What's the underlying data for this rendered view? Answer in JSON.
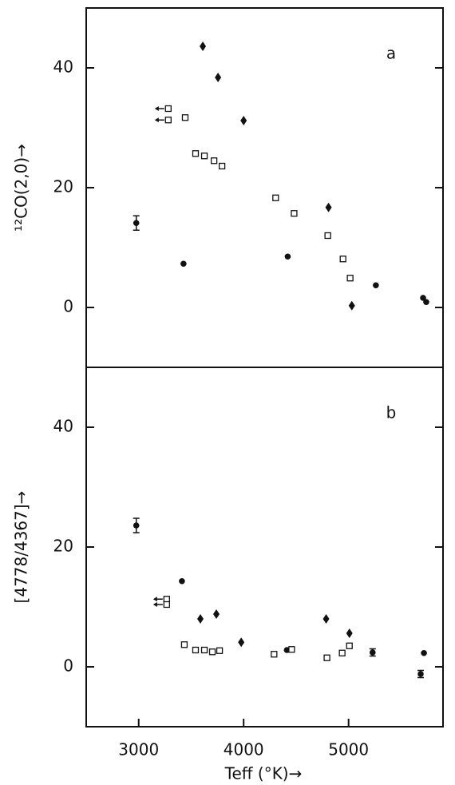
{
  "chart_data": [
    {
      "type": "scatter",
      "panel_label": "a",
      "ylabel": "¹²CO(2,0)→",
      "xlim": [
        2500,
        5900
      ],
      "ylim": [
        -10,
        50
      ],
      "yticks": [
        0,
        20,
        40
      ],
      "series": [
        {
          "marker": "diamond",
          "color": "#111111",
          "x": [
            3611,
            3756,
            4000,
            4809,
            5031
          ],
          "values": [
            43.6,
            38.4,
            31.2,
            16.7,
            0.3
          ]
        },
        {
          "marker": "circle",
          "color": "#111111",
          "x": [
            2977,
            3427,
            4420,
            5260,
            5710,
            5740
          ],
          "values": [
            14.1,
            7.3,
            8.5,
            3.7,
            1.6,
            0.9
          ],
          "errors": [
            1.2,
            null,
            null,
            null,
            null,
            null
          ]
        },
        {
          "marker": "square",
          "color": "#111111",
          "x": [
            3443,
            3542,
            3626,
            3718,
            3794,
            4305,
            4481,
            4802,
            4947,
            5015
          ],
          "values": [
            31.7,
            25.7,
            25.3,
            24.5,
            23.6,
            18.3,
            15.7,
            12.0,
            8.1,
            4.9
          ]
        },
        {
          "marker": "square",
          "color": "#111111",
          "upper_limit_x": true,
          "x": [
            3282,
            3282
          ],
          "values": [
            33.2,
            31.3
          ]
        }
      ]
    },
    {
      "type": "scatter",
      "panel_label": "b",
      "ylabel": "[4778/4367]→",
      "xlabel": "Teff (°K)→",
      "xlim": [
        2500,
        5900
      ],
      "xticks": [
        3000,
        4000,
        5000
      ],
      "ylim": [
        -10,
        50
      ],
      "yticks": [
        0,
        20,
        40
      ],
      "series": [
        {
          "marker": "diamond",
          "color": "#111111",
          "x": [
            3588,
            3740,
            3977,
            4786,
            5008
          ],
          "values": [
            8.0,
            8.8,
            4.1,
            8.0,
            5.6
          ]
        },
        {
          "marker": "circle",
          "color": "#111111",
          "x": [
            2977,
            3412,
            4412,
            5229,
            5687,
            5718
          ],
          "values": [
            23.6,
            14.3,
            2.8,
            2.4,
            -1.2,
            2.3
          ],
          "errors": [
            1.2,
            null,
            null,
            0.6,
            0.6,
            null
          ]
        },
        {
          "marker": "square",
          "color": "#111111",
          "x": [
            3435,
            3542,
            3626,
            3702,
            3771,
            4290,
            4458,
            4794,
            4939,
            5008
          ],
          "values": [
            3.7,
            2.8,
            2.8,
            2.5,
            2.7,
            2.1,
            2.9,
            1.5,
            2.3,
            3.5
          ]
        },
        {
          "marker": "square",
          "color": "#111111",
          "upper_limit_x": true,
          "x": [
            3267,
            3267
          ],
          "values": [
            11.3,
            10.4
          ]
        }
      ]
    }
  ]
}
